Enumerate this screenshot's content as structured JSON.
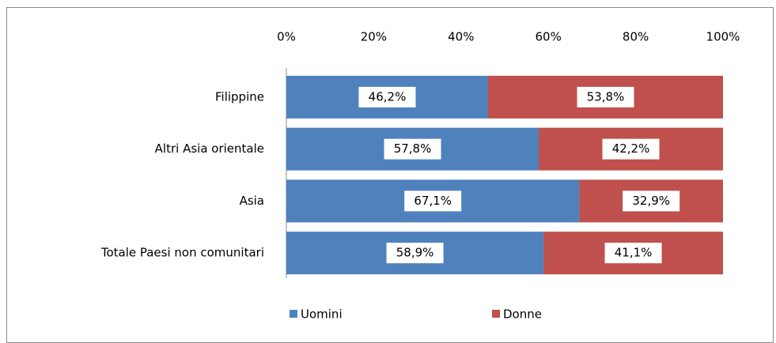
{
  "chart_data": {
    "type": "stacked_bar_horizontal",
    "categories": [
      "Filippine",
      "Altri Asia orientale",
      "Asia",
      "Totale Paesi non comunitari"
    ],
    "series": [
      {
        "name": "Uomini",
        "color": "#4f81bd",
        "values": [
          46.2,
          57.8,
          67.1,
          58.9
        ],
        "value_labels": [
          "46,2%",
          "57,8%",
          "67,1%",
          "58,9%"
        ]
      },
      {
        "name": "Donne",
        "color": "#c0504d",
        "values": [
          53.8,
          42.2,
          32.9,
          41.1
        ],
        "value_labels": [
          "53,8%",
          "42,2%",
          "32,9%",
          "41,1%"
        ]
      }
    ],
    "xlim": [
      0,
      100
    ],
    "xticks": [
      {
        "value": 0,
        "label": "0%"
      },
      {
        "value": 20,
        "label": "20%"
      },
      {
        "value": 40,
        "label": "40%"
      },
      {
        "value": 60,
        "label": "60%"
      },
      {
        "value": 80,
        "label": "80%"
      },
      {
        "value": 100,
        "label": "100%"
      }
    ],
    "grid": false,
    "legend": "bottom"
  }
}
